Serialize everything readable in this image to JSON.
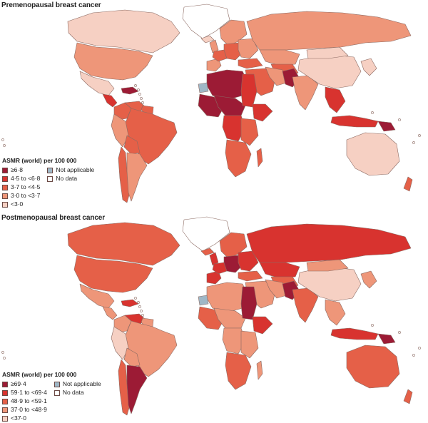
{
  "colors": {
    "c5": "#9c1b35",
    "c4": "#d8332f",
    "c3": "#e56048",
    "c2": "#ee9679",
    "c1": "#f6d0c3",
    "not_applicable": "#9fb7c6",
    "no_data": "#ffffff",
    "border": "#8b6a62"
  },
  "premenopausal": {
    "title": "Premenopausal breast cancer",
    "legend_title": "ASMR (world) per 100 000",
    "categories": [
      {
        "label": "≥6·8",
        "class": "c5"
      },
      {
        "label": "4·5 to <6·8",
        "class": "c4"
      },
      {
        "label": "3·7 to <4·5",
        "class": "c3"
      },
      {
        "label": "3·0 to <3·7",
        "class": "c2"
      },
      {
        "label": "<3·0",
        "class": "c1"
      }
    ],
    "special": [
      {
        "label": "Not applicable",
        "class": "not_applicable"
      },
      {
        "label": "No data",
        "class": "no_data"
      }
    ],
    "regions": {
      "greenland": "no_data",
      "canada": "c1",
      "usa": "c2",
      "mexico": "c1",
      "central_america": "c4",
      "caribbean": "c5",
      "colombia": "c3",
      "venezuela": "c3",
      "guianas": "c3",
      "brazil": "c3",
      "peru": "c2",
      "bolivia": "c3",
      "chile": "c3",
      "argentina": "c2",
      "iceland": "c1",
      "scandinavia": "c2",
      "uk": "c2",
      "iberia": "c2",
      "france": "c3",
      "central_europe": "c3",
      "eastern_europe": "c2",
      "russia": "c2",
      "kazakhstan": "c2",
      "central_asia": "c3",
      "turkey": "c3",
      "middle_east": "c3",
      "iran": "c2",
      "pakistan": "c5",
      "india": "c2",
      "china": "c1",
      "mongolia": "c1",
      "korea_japan": "c1",
      "southeast_asia": "c4",
      "indonesia": "c4",
      "png": "c5",
      "australia": "c1",
      "new_zealand": "c3",
      "north_africa": "c5",
      "western_sahara": "not_applicable",
      "west_africa": "c5",
      "sahel": "c5",
      "egypt_sudan": "c4",
      "horn_of_africa": "c4",
      "central_africa": "c4",
      "east_africa": "c3",
      "southern_africa": "c3",
      "madagascar": "c3"
    }
  },
  "postmenopausal": {
    "title": "Postmenopausal breast cancer",
    "legend_title": "ASMR (world) per 100 000",
    "categories": [
      {
        "label": "≥69·4",
        "class": "c5"
      },
      {
        "label": "59·1 to <69·4",
        "class": "c4"
      },
      {
        "label": "48·9 to <59·1",
        "class": "c3"
      },
      {
        "label": "37·0 to <48·9",
        "class": "c2"
      },
      {
        "label": "<37·0",
        "class": "c1"
      }
    ],
    "special": [
      {
        "label": "Not applicable",
        "class": "not_applicable"
      },
      {
        "label": "No data",
        "class": "no_data"
      }
    ],
    "regions": {
      "greenland": "no_data",
      "canada": "c3",
      "usa": "c3",
      "mexico": "c2",
      "central_america": "c2",
      "caribbean": "c4",
      "colombia": "c2",
      "venezuela": "c4",
      "guianas": "c2",
      "brazil": "c2",
      "peru": "c1",
      "bolivia": "c2",
      "chile": "c3",
      "argentina": "c5",
      "iceland": "c3",
      "scandinavia": "c3",
      "uk": "c4",
      "iberia": "c4",
      "france": "c4",
      "central_europe": "c5",
      "eastern_europe": "c4",
      "russia": "c4",
      "kazakhstan": "c4",
      "central_asia": "c3",
      "turkey": "c3",
      "middle_east": "c2",
      "iran": "c2",
      "pakistan": "c5",
      "india": "c3",
      "china": "c1",
      "mongolia": "c2",
      "korea_japan": "c2",
      "southeast_asia": "c2",
      "indonesia": "c4",
      "png": "c5",
      "australia": "c3",
      "new_zealand": "c3",
      "north_africa": "c2",
      "western_sahara": "not_applicable",
      "west_africa": "c3",
      "sahel": "c2",
      "egypt_sudan": "c5",
      "horn_of_africa": "c4",
      "central_africa": "c2",
      "east_africa": "c2",
      "southern_africa": "c3",
      "madagascar": "c2"
    }
  }
}
